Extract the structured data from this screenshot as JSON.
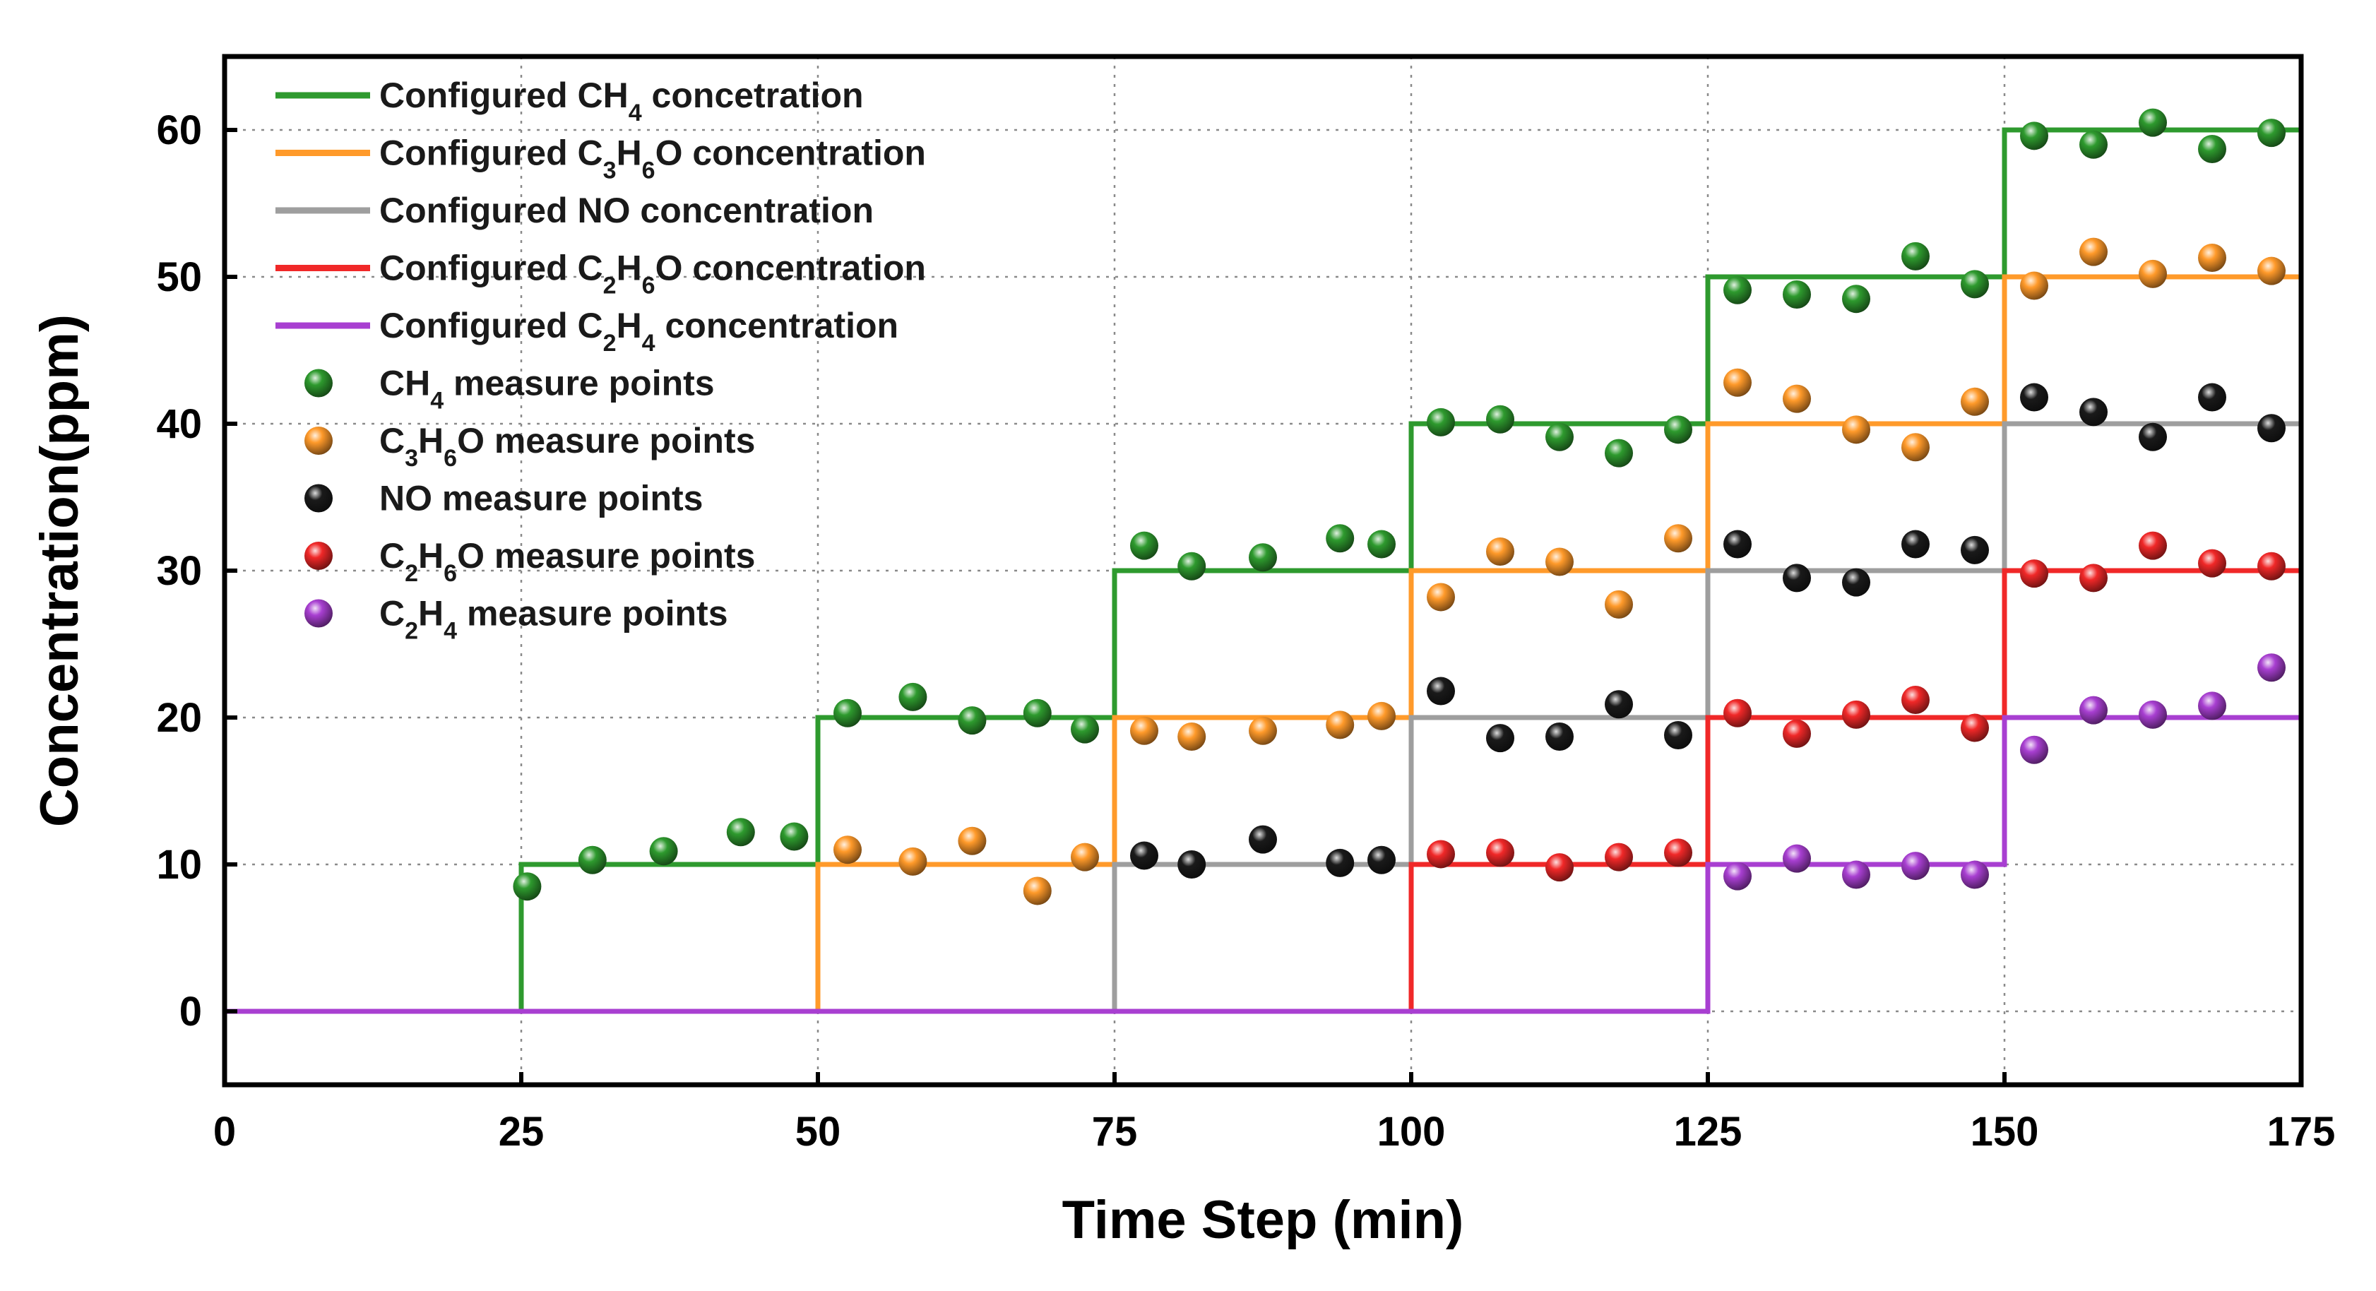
{
  "chart_data": {
    "type": "line",
    "xlabel": "Time Step (min)",
    "ylabel": "Concentration(ppm)",
    "xlim": [
      0,
      175
    ],
    "ylim": [
      -5,
      65
    ],
    "xticks": [
      0,
      25,
      50,
      75,
      100,
      125,
      150,
      175
    ],
    "yticks": [
      0,
      10,
      20,
      30,
      40,
      50,
      60
    ],
    "grid": true,
    "legend_position": "top-left",
    "series": [
      {
        "name": "Configured CH4 concetration",
        "label_parts": [
          [
            "Configured CH",
            ""
          ],
          [
            "4",
            "sub"
          ],
          [
            " concetration",
            ""
          ]
        ],
        "kind": "step",
        "color": "#2e9a2e",
        "points": [
          [
            0,
            0
          ],
          [
            25,
            0
          ],
          [
            25,
            10
          ],
          [
            50,
            10
          ],
          [
            50,
            20
          ],
          [
            75,
            20
          ],
          [
            75,
            30
          ],
          [
            100,
            30
          ],
          [
            100,
            40
          ],
          [
            125,
            40
          ],
          [
            125,
            50
          ],
          [
            150,
            50
          ],
          [
            150,
            60
          ],
          [
            175,
            60
          ]
        ]
      },
      {
        "name": "Configured C3H6O concentration",
        "label_parts": [
          [
            "Configured C",
            ""
          ],
          [
            "3",
            "sub"
          ],
          [
            "H",
            ""
          ],
          [
            "6",
            "sub"
          ],
          [
            "O concentration",
            ""
          ]
        ],
        "kind": "step",
        "color": "#ff9a2a",
        "points": [
          [
            0,
            0
          ],
          [
            50,
            0
          ],
          [
            50,
            10
          ],
          [
            75,
            10
          ],
          [
            75,
            20
          ],
          [
            100,
            20
          ],
          [
            100,
            30
          ],
          [
            125,
            30
          ],
          [
            125,
            40
          ],
          [
            150,
            40
          ],
          [
            150,
            50
          ],
          [
            175,
            50
          ]
        ]
      },
      {
        "name": "Configured NO concentration",
        "label_parts": [
          [
            "Configured NO concentration",
            ""
          ]
        ],
        "kind": "step",
        "color": "#9e9e9e",
        "points": [
          [
            0,
            0
          ],
          [
            75,
            0
          ],
          [
            75,
            10
          ],
          [
            100,
            10
          ],
          [
            100,
            20
          ],
          [
            125,
            20
          ],
          [
            125,
            30
          ],
          [
            150,
            30
          ],
          [
            150,
            40
          ],
          [
            175,
            40
          ]
        ]
      },
      {
        "name": "Configured C2H6O concentration",
        "label_parts": [
          [
            "Configured C",
            ""
          ],
          [
            "2",
            "sub"
          ],
          [
            "H",
            ""
          ],
          [
            "6",
            "sub"
          ],
          [
            "O concentration",
            ""
          ]
        ],
        "kind": "step",
        "color": "#f02828",
        "points": [
          [
            0,
            0
          ],
          [
            100,
            0
          ],
          [
            100,
            10
          ],
          [
            125,
            10
          ],
          [
            125,
            20
          ],
          [
            150,
            20
          ],
          [
            150,
            30
          ],
          [
            175,
            30
          ]
        ]
      },
      {
        "name": "Configured C2H4 concentration",
        "label_parts": [
          [
            "Configured C",
            ""
          ],
          [
            "2",
            "sub"
          ],
          [
            "H",
            ""
          ],
          [
            "4",
            "sub"
          ],
          [
            " concentration",
            ""
          ]
        ],
        "kind": "step",
        "color": "#a83fd1",
        "points": [
          [
            0,
            0
          ],
          [
            125,
            0
          ],
          [
            125,
            10
          ],
          [
            150,
            10
          ],
          [
            150,
            20
          ],
          [
            175,
            20
          ]
        ]
      },
      {
        "name": "CH4 measure points",
        "label_parts": [
          [
            "CH",
            ""
          ],
          [
            "4",
            "sub"
          ],
          [
            " measure points",
            ""
          ]
        ],
        "kind": "scatter",
        "color": "#2e9a2e",
        "points": [
          [
            25.5,
            8.5
          ],
          [
            31,
            10.3
          ],
          [
            37,
            10.9
          ],
          [
            43.5,
            12.2
          ],
          [
            48,
            11.9
          ],
          [
            52.5,
            20.3
          ],
          [
            58,
            21.4
          ],
          [
            63,
            19.8
          ],
          [
            68.5,
            20.3
          ],
          [
            72.5,
            19.2
          ],
          [
            77.5,
            31.7
          ],
          [
            81.5,
            30.3
          ],
          [
            87.5,
            30.9
          ],
          [
            94,
            32.2
          ],
          [
            97.5,
            31.8
          ],
          [
            102.5,
            40.1
          ],
          [
            107.5,
            40.3
          ],
          [
            112.5,
            39.1
          ],
          [
            117.5,
            38
          ],
          [
            122.5,
            39.6
          ],
          [
            127.5,
            49.1
          ],
          [
            132.5,
            48.8
          ],
          [
            137.5,
            48.5
          ],
          [
            142.5,
            51.4
          ],
          [
            147.5,
            49.5
          ],
          [
            152.5,
            59.6
          ],
          [
            157.5,
            59
          ],
          [
            162.5,
            60.5
          ],
          [
            167.5,
            58.7
          ],
          [
            172.5,
            59.8
          ]
        ]
      },
      {
        "name": "C3H6O measure points",
        "label_parts": [
          [
            "C",
            ""
          ],
          [
            "3",
            "sub"
          ],
          [
            "H",
            ""
          ],
          [
            "6",
            "sub"
          ],
          [
            "O measure points",
            ""
          ]
        ],
        "kind": "scatter",
        "color": "#ff9a2a",
        "points": [
          [
            52.5,
            11
          ],
          [
            58,
            10.2
          ],
          [
            63,
            11.6
          ],
          [
            68.5,
            8.2
          ],
          [
            72.5,
            10.5
          ],
          [
            77.5,
            19.1
          ],
          [
            81.5,
            18.7
          ],
          [
            87.5,
            19.1
          ],
          [
            94,
            19.5
          ],
          [
            97.5,
            20.1
          ],
          [
            102.5,
            28.2
          ],
          [
            107.5,
            31.3
          ],
          [
            112.5,
            30.6
          ],
          [
            117.5,
            27.7
          ],
          [
            122.5,
            32.2
          ],
          [
            127.5,
            42.8
          ],
          [
            132.5,
            41.7
          ],
          [
            137.5,
            39.6
          ],
          [
            142.5,
            38.4
          ],
          [
            147.5,
            41.5
          ],
          [
            152.5,
            49.4
          ],
          [
            157.5,
            51.7
          ],
          [
            162.5,
            50.2
          ],
          [
            167.5,
            51.3
          ],
          [
            172.5,
            50.4
          ]
        ]
      },
      {
        "name": "NO measure points",
        "label_parts": [
          [
            "NO measure points",
            ""
          ]
        ],
        "kind": "scatter",
        "color": "#1a1a1a",
        "points": [
          [
            77.5,
            10.6
          ],
          [
            81.5,
            10
          ],
          [
            87.5,
            11.7
          ],
          [
            94,
            10.1
          ],
          [
            97.5,
            10.3
          ],
          [
            102.5,
            21.8
          ],
          [
            107.5,
            18.6
          ],
          [
            112.5,
            18.7
          ],
          [
            117.5,
            20.9
          ],
          [
            122.5,
            18.8
          ],
          [
            127.5,
            31.8
          ],
          [
            132.5,
            29.5
          ],
          [
            137.5,
            29.2
          ],
          [
            142.5,
            31.8
          ],
          [
            147.5,
            31.4
          ],
          [
            152.5,
            41.8
          ],
          [
            157.5,
            40.8
          ],
          [
            162.5,
            39.1
          ],
          [
            167.5,
            41.8
          ],
          [
            172.5,
            39.7
          ]
        ]
      },
      {
        "name": "C2H6O measure points",
        "label_parts": [
          [
            "C",
            ""
          ],
          [
            "2",
            "sub"
          ],
          [
            "H",
            ""
          ],
          [
            "6",
            "sub"
          ],
          [
            "O measure points",
            ""
          ]
        ],
        "kind": "scatter",
        "color": "#f02828",
        "points": [
          [
            102.5,
            10.7
          ],
          [
            107.5,
            10.8
          ],
          [
            112.5,
            9.8
          ],
          [
            117.5,
            10.5
          ],
          [
            122.5,
            10.8
          ],
          [
            127.5,
            20.3
          ],
          [
            132.5,
            18.9
          ],
          [
            137.5,
            20.2
          ],
          [
            142.5,
            21.2
          ],
          [
            147.5,
            19.3
          ],
          [
            152.5,
            29.8
          ],
          [
            157.5,
            29.5
          ],
          [
            162.5,
            31.7
          ],
          [
            167.5,
            30.5
          ],
          [
            172.5,
            30.3
          ]
        ]
      },
      {
        "name": "C2H4 measure points",
        "label_parts": [
          [
            "C",
            ""
          ],
          [
            "2",
            "sub"
          ],
          [
            "H",
            ""
          ],
          [
            "4",
            "sub"
          ],
          [
            " measure points",
            ""
          ]
        ],
        "kind": "scatter",
        "color": "#a83fd1",
        "points": [
          [
            127.5,
            9.2
          ],
          [
            132.5,
            10.4
          ],
          [
            137.5,
            9.3
          ],
          [
            142.5,
            9.9
          ],
          [
            147.5,
            9.3
          ],
          [
            152.5,
            17.8
          ],
          [
            157.5,
            20.5
          ],
          [
            162.5,
            20.2
          ],
          [
            167.5,
            20.8
          ],
          [
            172.5,
            23.4
          ]
        ]
      }
    ]
  }
}
